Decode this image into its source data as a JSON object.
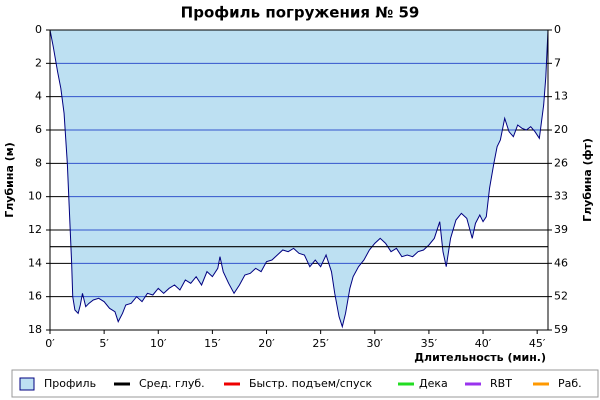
{
  "chart_data": {
    "type": "area",
    "title": "Профиль погружения № 59",
    "x_label": "Длительность (мин.)",
    "y_label": "Глубина (м)",
    "y2_label": "Глубина (фт)",
    "x": [
      0,
      0.3,
      0.7,
      1,
      1.3,
      1.6,
      1.8,
      2,
      2.1,
      2.3,
      2.6,
      2.8,
      3,
      3.3,
      3.6,
      4,
      4.5,
      5,
      5.5,
      6,
      6.3,
      6.7,
      7,
      7.5,
      8,
      8.5,
      9,
      9.5,
      10,
      10.5,
      11,
      11.5,
      12,
      12.5,
      13,
      13.5,
      14,
      14.5,
      15,
      15.5,
      15.7,
      16,
      16.5,
      17,
      17.5,
      18,
      18.5,
      19,
      19.5,
      20,
      20.5,
      21,
      21.5,
      22,
      22.5,
      23,
      23.5,
      24,
      24.5,
      25,
      25.5,
      26,
      26.3,
      26.7,
      27,
      27.3,
      27.7,
      28,
      28.5,
      29,
      29.5,
      30,
      30.5,
      31,
      31.5,
      32,
      32.5,
      33,
      33.5,
      34,
      34.5,
      35,
      35.5,
      36,
      36.3,
      36.6,
      37,
      37.5,
      38,
      38.5,
      39,
      39.3,
      39.7,
      40,
      40.3,
      40.6,
      41,
      41.3,
      41.6,
      42,
      42.4,
      42.8,
      43.2,
      43.6,
      44,
      44.4,
      44.8,
      45.2,
      45.6,
      45.8,
      46
    ],
    "series": [
      {
        "name": "Профиль",
        "color": "#bde0f2",
        "line_color": "#000080",
        "values": [
          0,
          1,
          2.5,
          3.5,
          5,
          8,
          11,
          14,
          16,
          16.8,
          17,
          16.5,
          15.8,
          16.6,
          16.4,
          16.2,
          16.1,
          16.3,
          16.7,
          16.9,
          17.5,
          17,
          16.5,
          16.4,
          16,
          16.3,
          15.8,
          15.9,
          15.5,
          15.8,
          15.5,
          15.3,
          15.6,
          15,
          15.2,
          14.8,
          15.3,
          14.5,
          14.8,
          14.3,
          13.6,
          14.5,
          15.2,
          15.8,
          15.3,
          14.7,
          14.6,
          14.3,
          14.5,
          13.9,
          13.8,
          13.5,
          13.2,
          13.3,
          13.1,
          13.4,
          13.5,
          14.2,
          13.8,
          14.2,
          13.5,
          14.5,
          15.8,
          17.2,
          17.8,
          17,
          15.5,
          14.8,
          14.2,
          13.8,
          13.2,
          12.8,
          12.5,
          12.8,
          13.3,
          13.1,
          13.6,
          13.5,
          13.6,
          13.3,
          13.2,
          12.9,
          12.5,
          11.5,
          13.3,
          14.2,
          12.5,
          11.4,
          11,
          11.3,
          12.5,
          11.6,
          11.1,
          11.5,
          11.2,
          9.5,
          8,
          7,
          6.6,
          5.3,
          6.1,
          6.4,
          5.7,
          5.9,
          6,
          5.8,
          6.1,
          6.5,
          4.5,
          2.8,
          0
        ]
      }
    ],
    "avg_depth": {
      "name": "Сред. глуб.",
      "color": "#000000",
      "value": 13
    },
    "legend_extra": [
      {
        "name": "Быстр. подъем/спуск",
        "color": "#ee0000"
      },
      {
        "name": "Дека",
        "color": "#22dd22"
      },
      {
        "name": "RBT",
        "color": "#9933ee"
      },
      {
        "name": "Раб.",
        "color": "#ff9900"
      }
    ],
    "xlim": [
      0,
      46
    ],
    "xticks": [
      {
        "value": 0,
        "label": "0′"
      },
      {
        "value": 5,
        "label": "5′"
      },
      {
        "value": 10,
        "label": "10′"
      },
      {
        "value": 15,
        "label": "15′"
      },
      {
        "value": 20,
        "label": "20′"
      },
      {
        "value": 25,
        "label": "25′"
      },
      {
        "value": 30,
        "label": "30′"
      },
      {
        "value": 35,
        "label": "35′"
      },
      {
        "value": 40,
        "label": "40′"
      },
      {
        "value": 45,
        "label": "45′"
      }
    ],
    "ylim": [
      0,
      18
    ],
    "yticks": [
      0,
      2,
      4,
      6,
      8,
      10,
      12,
      14,
      16,
      18
    ],
    "y2lim": [
      0,
      59.06
    ],
    "y2ticks": [
      0,
      {
        "value": 6.56,
        "label": "7"
      },
      {
        "value": 13.12,
        "label": "13"
      },
      {
        "value": 19.69,
        "label": "20"
      },
      {
        "value": 26.25,
        "label": "26"
      },
      {
        "value": 32.81,
        "label": "33"
      },
      {
        "value": 39.37,
        "label": "39"
      },
      {
        "value": 45.93,
        "label": "46"
      },
      {
        "value": 52.49,
        "label": "52"
      },
      {
        "value": 59.06,
        "label": "59"
      }
    ],
    "y_inverted": true,
    "grid": true,
    "grid_color_inside": "#3355cc",
    "grid_color_outside": "#000000"
  }
}
